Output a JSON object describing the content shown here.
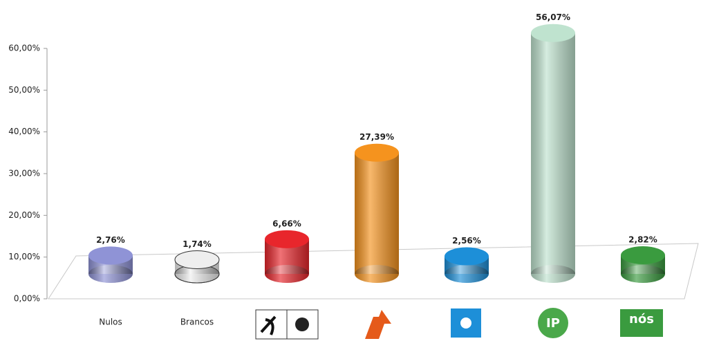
{
  "chart_data": {
    "type": "bar",
    "categories": [
      "Nulos",
      "Brancos",
      null,
      null,
      null,
      null,
      null
    ],
    "values": [
      2.76,
      1.74,
      6.66,
      27.39,
      2.56,
      56.07,
      2.82
    ],
    "value_labels": [
      "2,76%",
      "1,74%",
      "6,66%",
      "27,39%",
      "2,56%",
      "56,07%",
      "2,82%"
    ],
    "colors": [
      "#8f93d6",
      "#eeeeee",
      "#e8262c",
      "#f5931e",
      "#1d8fd8",
      "#bfe3cf",
      "#3a9b3f"
    ],
    "ylim": [
      0,
      60
    ],
    "yticks": [
      {
        "value": 0,
        "label": "0,00%"
      },
      {
        "value": 10,
        "label": "10,00%"
      },
      {
        "value": 20,
        "label": "20,00%"
      },
      {
        "value": 30,
        "label": "30,00%"
      },
      {
        "value": 40,
        "label": "40,00%"
      },
      {
        "value": 50,
        "label": "50,00%"
      },
      {
        "value": 60,
        "label": "60,00%"
      }
    ],
    "grid": false
  }
}
